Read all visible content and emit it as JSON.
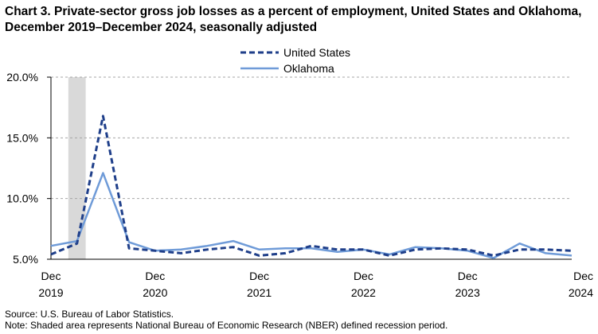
{
  "chart_data": {
    "type": "line",
    "title": "Chart 3. Private-sector gross job losses as a percent of employment, United States and Oklahoma, December 2019–December 2024, seasonally adjusted",
    "xlabel": "",
    "ylabel": "",
    "x": [
      "Dec 2019",
      "Mar 2020",
      "Jun 2020",
      "Sep 2020",
      "Dec 2020",
      "Mar 2021",
      "Jun 2021",
      "Sep 2021",
      "Dec 2021",
      "Mar 2022",
      "Jun 2022",
      "Sep 2022",
      "Dec 2022",
      "Mar 2023",
      "Jun 2023",
      "Sep 2023",
      "Dec 2023",
      "Mar 2024",
      "Jun 2024",
      "Sep 2024",
      "Dec 2024"
    ],
    "x_tick_labels": [
      {
        "month": "Dec",
        "year": "2019"
      },
      {
        "month": "Dec",
        "year": "2020"
      },
      {
        "month": "Dec",
        "year": "2021"
      },
      {
        "month": "Dec",
        "year": "2022"
      },
      {
        "month": "Dec",
        "year": "2023"
      },
      {
        "month": "Dec",
        "year": "2024"
      }
    ],
    "y_tick_labels": [
      "5.0%",
      "10.0%",
      "15.0%",
      "20.0%"
    ],
    "ylim": [
      5,
      20
    ],
    "y_ticks": [
      5,
      10,
      15,
      20
    ],
    "grid": "horizontal dashed",
    "legend_position": "top-center",
    "recession_shading": {
      "start": "Feb 2020",
      "end": "Apr 2020"
    },
    "series": [
      {
        "name": "United States",
        "style": "dashed",
        "color": "#1f3f8a",
        "values": [
          5.4,
          6.3,
          16.8,
          5.9,
          5.7,
          5.5,
          5.8,
          6.0,
          5.3,
          5.5,
          6.1,
          5.8,
          5.8,
          5.3,
          5.8,
          5.9,
          5.8,
          5.3,
          5.8,
          5.8,
          5.7
        ]
      },
      {
        "name": "Oklahoma",
        "style": "solid",
        "color": "#6f9bd8",
        "values": [
          6.1,
          6.5,
          12.1,
          6.4,
          5.7,
          5.8,
          6.1,
          6.5,
          5.8,
          5.9,
          5.9,
          5.6,
          5.8,
          5.4,
          6.0,
          5.9,
          5.7,
          5.1,
          6.3,
          5.5,
          5.3
        ]
      }
    ]
  },
  "footnotes": {
    "source": "Source: U.S. Bureau of Labor Statistics.",
    "note": "Note: Shaded area represents National Bureau of Economic Research (NBER) defined  recession period."
  },
  "colors": {
    "recession_shade": "#d9d9d9",
    "grid": "#a6a6a6",
    "axis": "#000000"
  }
}
